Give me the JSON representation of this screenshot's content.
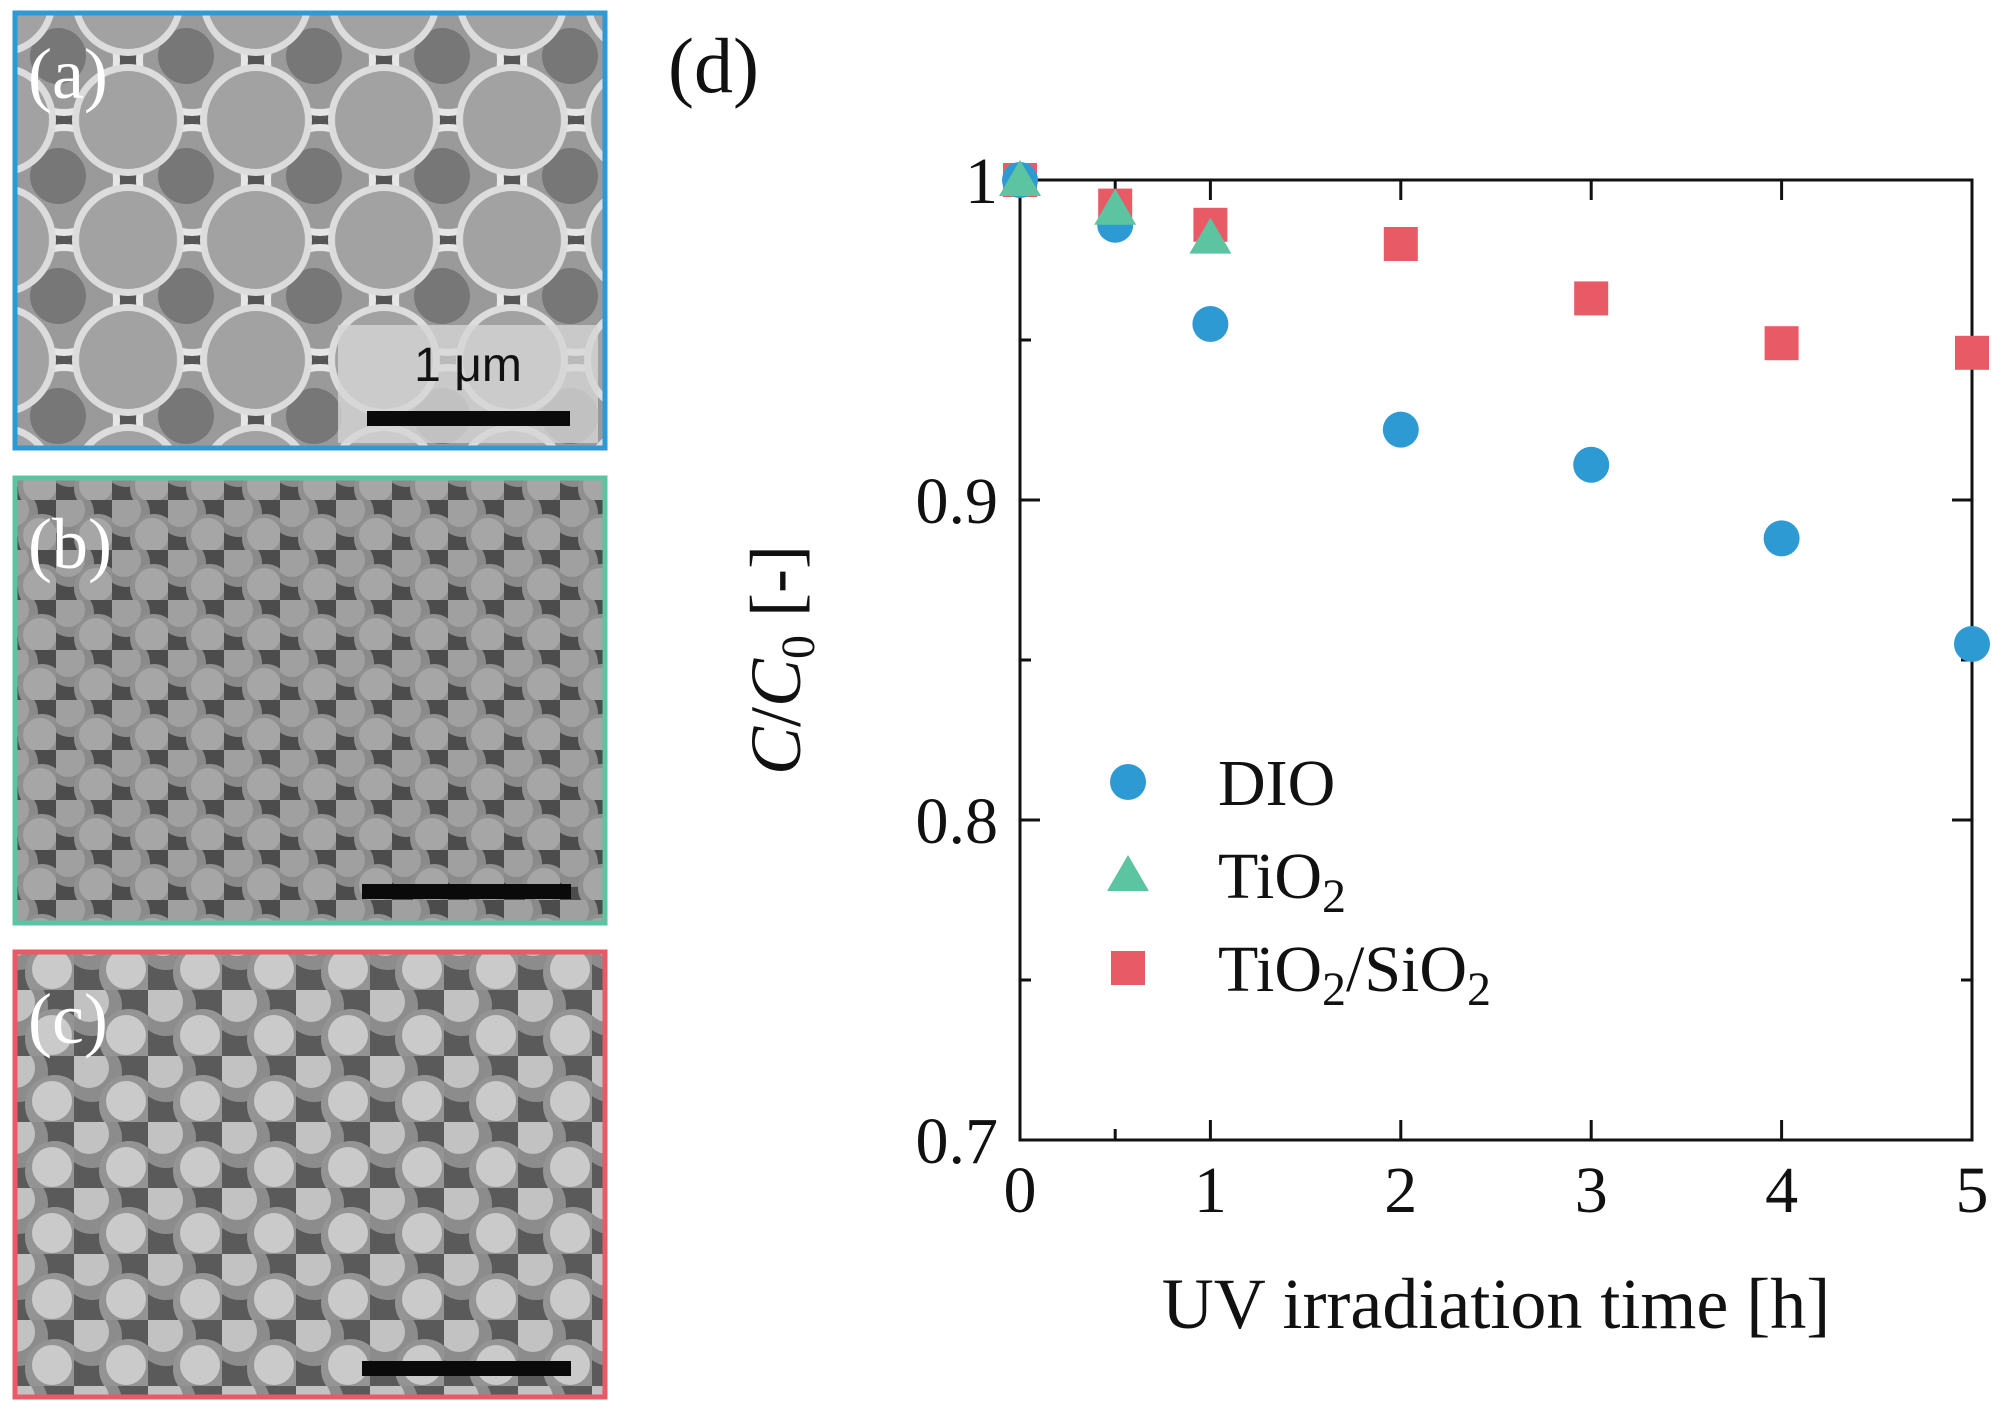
{
  "panels": {
    "a": {
      "label": "(a)",
      "scale_bar_text": "1 μm",
      "border_color": "#2e9ad4"
    },
    "b": {
      "label": "(b)",
      "border_color": "#5cc4a0"
    },
    "c": {
      "label": "(c)",
      "border_color": "#e85a66"
    },
    "d": {
      "label": "(d)"
    }
  },
  "chart_data": {
    "type": "scatter",
    "title": "",
    "xlabel": "UV irradiation time [h]",
    "ylabel_parts": {
      "c": "C",
      "slash": "/",
      "c0": "C",
      "c0_sub": "0",
      "unit": " [-]"
    },
    "xlim": [
      0,
      5
    ],
    "ylim": [
      0.7,
      1.0
    ],
    "x_ticks": [
      {
        "value": 0,
        "label": "0"
      },
      {
        "value": 1,
        "label": "1"
      },
      {
        "value": 2,
        "label": "2"
      },
      {
        "value": 3,
        "label": "3"
      },
      {
        "value": 4,
        "label": "4"
      },
      {
        "value": 5,
        "label": "5"
      }
    ],
    "x_minor_ticks": [
      0.5
    ],
    "y_ticks": [
      {
        "value": 0.7,
        "label": "0.7"
      },
      {
        "value": 0.8,
        "label": "0.8"
      },
      {
        "value": 0.9,
        "label": "0.9"
      },
      {
        "value": 1.0,
        "label": "1"
      }
    ],
    "y_minor_ticks": [
      0.75,
      0.85,
      0.95
    ],
    "legend_position": "lower-left",
    "series": [
      {
        "key": "dio",
        "name": "DIO",
        "name_parts": [
          {
            "text": "DIO"
          }
        ],
        "marker": "circle",
        "color": "#2e9ad4",
        "x": [
          0,
          0.5,
          1,
          2,
          3,
          4,
          5
        ],
        "y": [
          1.0,
          0.986,
          0.955,
          0.922,
          0.911,
          0.888,
          0.855
        ]
      },
      {
        "key": "tio2",
        "name": "TiO2",
        "name_parts": [
          {
            "text": "TiO"
          },
          {
            "text": "2",
            "sub": true
          }
        ],
        "marker": "triangle",
        "color": "#5cc4a0",
        "x": [
          0,
          0.5,
          1
        ],
        "y": [
          1.0,
          0.991,
          0.982
        ]
      },
      {
        "key": "tio2sio2",
        "name": "TiO2/SiO2",
        "name_parts": [
          {
            "text": "TiO"
          },
          {
            "text": "2",
            "sub": true
          },
          {
            "text": "/SiO"
          },
          {
            "text": "2",
            "sub": true
          }
        ],
        "marker": "square",
        "color": "#e85a66",
        "x": [
          0,
          0.5,
          1,
          2,
          3,
          4,
          5
        ],
        "y": [
          1.0,
          0.992,
          0.986,
          0.98,
          0.963,
          0.949,
          0.946
        ]
      }
    ]
  }
}
